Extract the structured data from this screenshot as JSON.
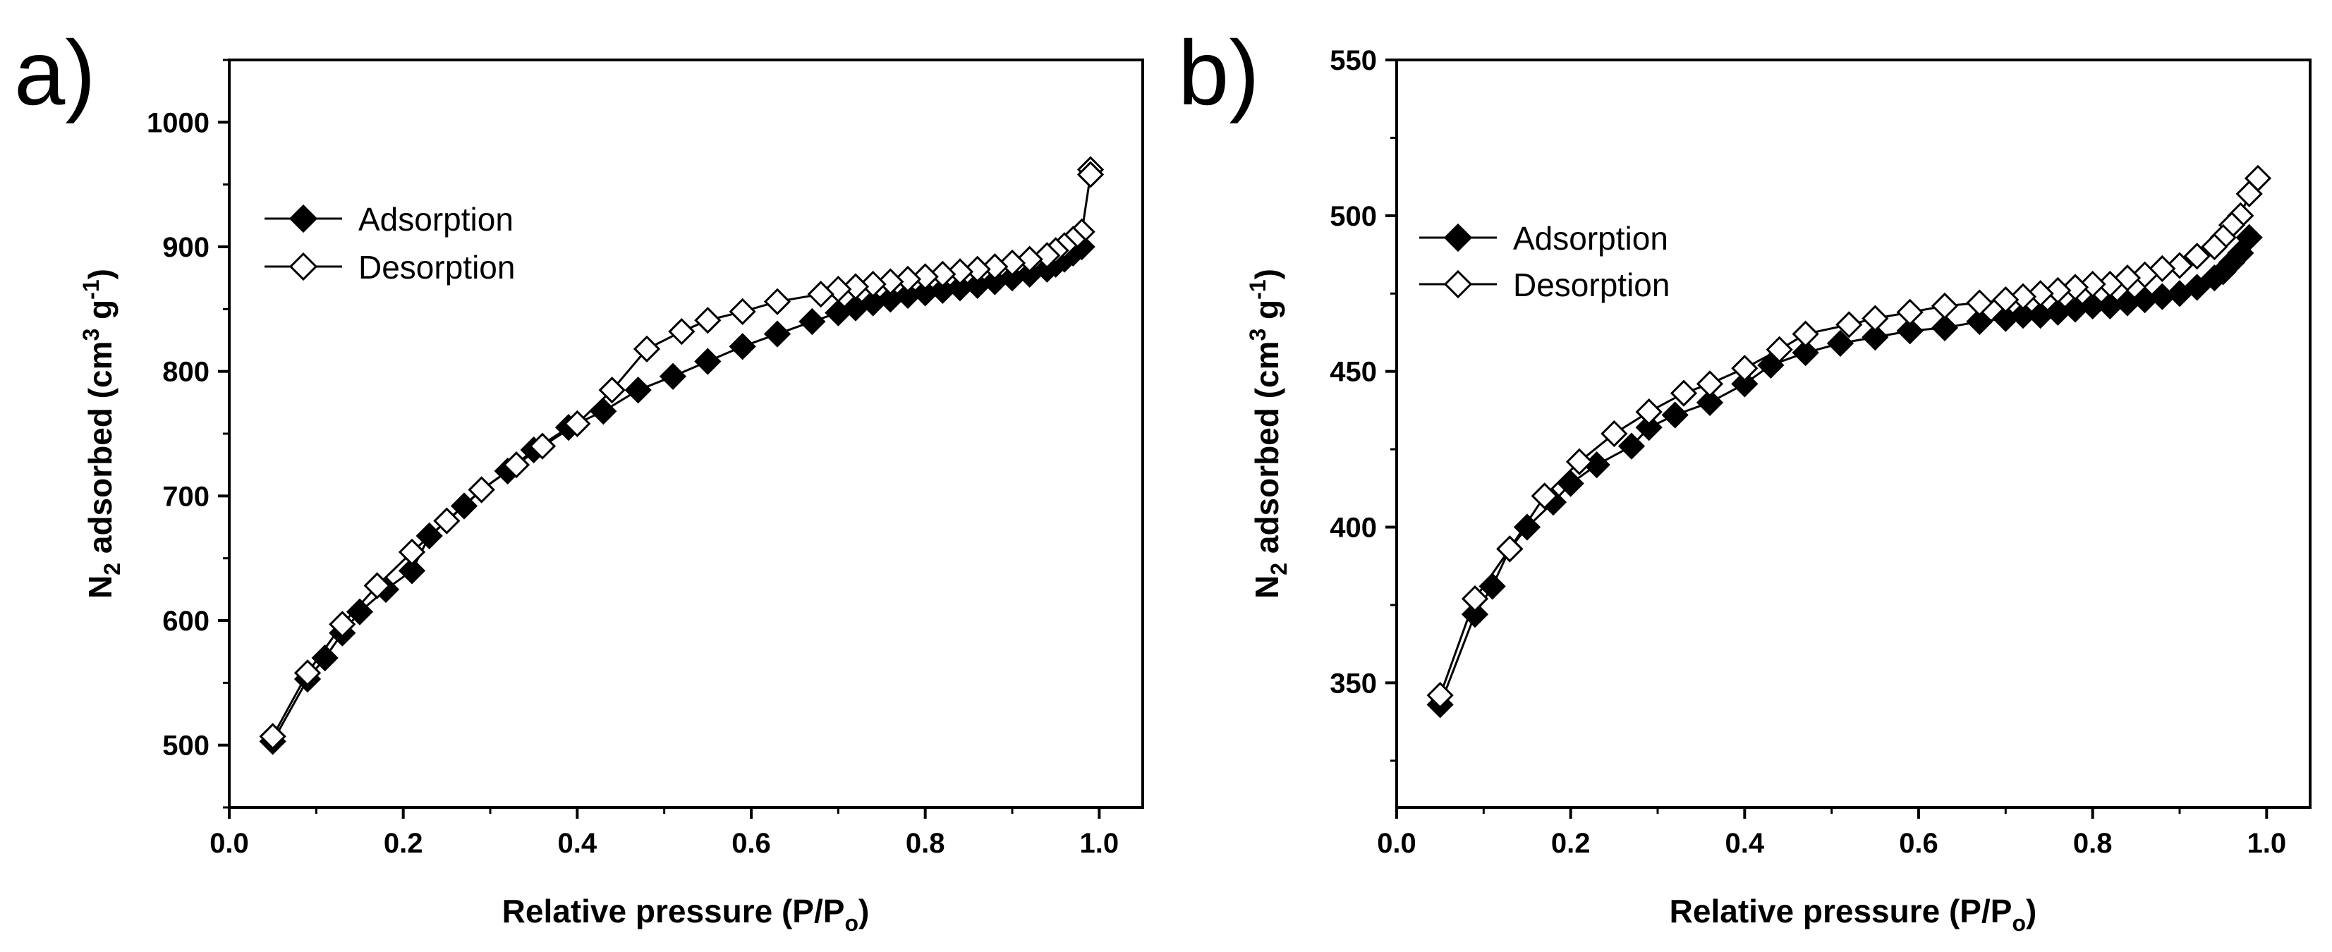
{
  "chart_data": [
    {
      "panel_label": "a)",
      "type": "scatter",
      "xlabel_main": "Relative pressure (P/P",
      "xlabel_sub": "o",
      "xlabel_end": ")",
      "ylabel_pre": "N",
      "ylabel_sub": "2",
      "ylabel_mid": " adsorbed (cm",
      "ylabel_sup1": "3",
      "ylabel_mid2": " g",
      "ylabel_sup2": "-1",
      "ylabel_end": ")",
      "xlim": [
        0,
        1.05
      ],
      "ylim": [
        450,
        1050
      ],
      "xticks": [
        0.0,
        0.2,
        0.4,
        0.6,
        0.8,
        1.0
      ],
      "xtick_labels": [
        "0.0",
        "0.2",
        "0.4",
        "0.6",
        "0.8",
        "1.0"
      ],
      "yticks": [
        500,
        600,
        700,
        800,
        900,
        1000
      ],
      "ytick_labels": [
        "500",
        "600",
        "700",
        "800",
        "900",
        "1000"
      ],
      "legend_position": "upper-left",
      "series": [
        {
          "name": "Adsorption",
          "marker": "filled-diamond",
          "x": [
            0.05,
            0.09,
            0.11,
            0.13,
            0.15,
            0.18,
            0.21,
            0.23,
            0.27,
            0.29,
            0.32,
            0.35,
            0.39,
            0.43,
            0.47,
            0.51,
            0.55,
            0.59,
            0.63,
            0.67,
            0.7,
            0.72,
            0.74,
            0.76,
            0.78,
            0.8,
            0.82,
            0.84,
            0.86,
            0.88,
            0.9,
            0.92,
            0.94,
            0.95,
            0.96,
            0.97,
            0.98
          ],
          "y": [
            503,
            553,
            570,
            590,
            607,
            625,
            640,
            668,
            692,
            705,
            720,
            737,
            755,
            768,
            785,
            796,
            808,
            820,
            830,
            840,
            847,
            851,
            855,
            858,
            861,
            863,
            865,
            867,
            869,
            872,
            875,
            878,
            882,
            886,
            890,
            895,
            900
          ]
        },
        {
          "name": "Desorption",
          "marker": "open-diamond",
          "x": [
            0.99,
            0.99,
            0.98,
            0.97,
            0.96,
            0.95,
            0.94,
            0.92,
            0.9,
            0.88,
            0.86,
            0.84,
            0.82,
            0.8,
            0.78,
            0.76,
            0.74,
            0.72,
            0.7,
            0.68,
            0.63,
            0.59,
            0.55,
            0.52,
            0.48,
            0.44,
            0.4,
            0.36,
            0.33,
            0.29,
            0.25,
            0.21,
            0.17,
            0.13,
            0.09,
            0.05
          ],
          "y": [
            962,
            958,
            912,
            906,
            901,
            897,
            893,
            890,
            887,
            884,
            882,
            880,
            878,
            876,
            874,
            872,
            870,
            868,
            866,
            862,
            856,
            848,
            841,
            832,
            818,
            785,
            758,
            740,
            725,
            705,
            680,
            655,
            628,
            597,
            558,
            507
          ]
        }
      ]
    },
    {
      "panel_label": "b)",
      "type": "scatter",
      "xlabel_main": "Relative pressure (P/P",
      "xlabel_sub": "o",
      "xlabel_end": ")",
      "ylabel_pre": "N",
      "ylabel_sub": "2",
      "ylabel_mid": " adsorbed (cm",
      "ylabel_sup1": "3",
      "ylabel_mid2": " g",
      "ylabel_sup2": "-1",
      "ylabel_end": ")",
      "xlim": [
        0,
        1.05
      ],
      "ylim": [
        310,
        550
      ],
      "xticks": [
        0.0,
        0.2,
        0.4,
        0.6,
        0.8,
        1.0
      ],
      "xtick_labels": [
        "0.0",
        "0.2",
        "0.4",
        "0.6",
        "0.8",
        "1.0"
      ],
      "yticks": [
        350,
        400,
        450,
        500,
        550
      ],
      "ytick_labels": [
        "350",
        "400",
        "450",
        "500",
        "550"
      ],
      "legend_position": "upper-left",
      "series": [
        {
          "name": "Adsorption",
          "marker": "filled-diamond",
          "x": [
            0.05,
            0.09,
            0.11,
            0.13,
            0.15,
            0.18,
            0.2,
            0.23,
            0.27,
            0.29,
            0.32,
            0.36,
            0.4,
            0.43,
            0.47,
            0.51,
            0.55,
            0.59,
            0.63,
            0.67,
            0.7,
            0.72,
            0.74,
            0.76,
            0.78,
            0.8,
            0.82,
            0.84,
            0.86,
            0.88,
            0.9,
            0.92,
            0.94,
            0.95,
            0.96,
            0.97,
            0.98
          ],
          "y": [
            343,
            372,
            381,
            393,
            400,
            408,
            414,
            420,
            426,
            432,
            436,
            440,
            446,
            452,
            456,
            459,
            461,
            463,
            464,
            466,
            467,
            468,
            468,
            469,
            470,
            471,
            471,
            472,
            473,
            474,
            475,
            477,
            480,
            482,
            485,
            488,
            493
          ]
        },
        {
          "name": "Desorption",
          "marker": "open-diamond",
          "x": [
            0.99,
            0.98,
            0.97,
            0.96,
            0.95,
            0.94,
            0.92,
            0.9,
            0.88,
            0.86,
            0.84,
            0.82,
            0.8,
            0.78,
            0.76,
            0.74,
            0.72,
            0.7,
            0.67,
            0.63,
            0.59,
            0.55,
            0.52,
            0.47,
            0.44,
            0.4,
            0.36,
            0.33,
            0.29,
            0.25,
            0.21,
            0.17,
            0.13,
            0.09,
            0.05
          ],
          "y": [
            512,
            507,
            500,
            497,
            493,
            490,
            487,
            484,
            483,
            481,
            480,
            478,
            478,
            477,
            476,
            475,
            474,
            473,
            472,
            471,
            469,
            467,
            465,
            462,
            457,
            451,
            446,
            443,
            437,
            430,
            421,
            410,
            393,
            377,
            346
          ]
        }
      ]
    }
  ]
}
